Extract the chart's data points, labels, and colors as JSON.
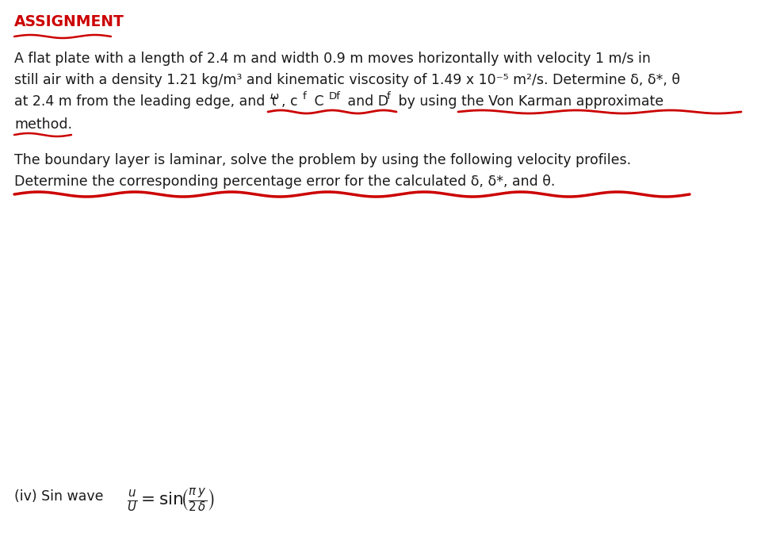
{
  "title": "ASSIGNMENT",
  "title_color": "#cc0000",
  "title_fontsize": 13.5,
  "body_fontsize": 12.5,
  "small_fontsize": 9.5,
  "background_color": "#ffffff",
  "line1": "A flat plate with a length of 2.4 m and width 0.9 m moves horizontally with velocity 1 m/s in",
  "line2": "still air with a density 1.21 kg/m³ and kinematic viscosity of 1.49 x 10⁻⁵ m²/s. Determine δ, δ*, θ",
  "line3a": "at 2.4 m from the leading edge, and τ",
  "line3_tau_sub": "ω",
  "line3b": ", c",
  "line3_cf_sub": "f",
  "line3c": " C",
  "line3_cdf_sub": "Df",
  "line3d": " and D",
  "line3_df_sub": "f",
  "line3e": " by using the Von Karman approximate",
  "line4": "method.",
  "line5": "The boundary layer is laminar, solve the problem by using the following velocity profiles.",
  "line6": "Determine the corresponding percentage error for the calculated δ, δ*, and θ.",
  "iv_label": "(iv) Sin wave",
  "underline_color": "#cc0000",
  "text_color": "#1a1a1a"
}
